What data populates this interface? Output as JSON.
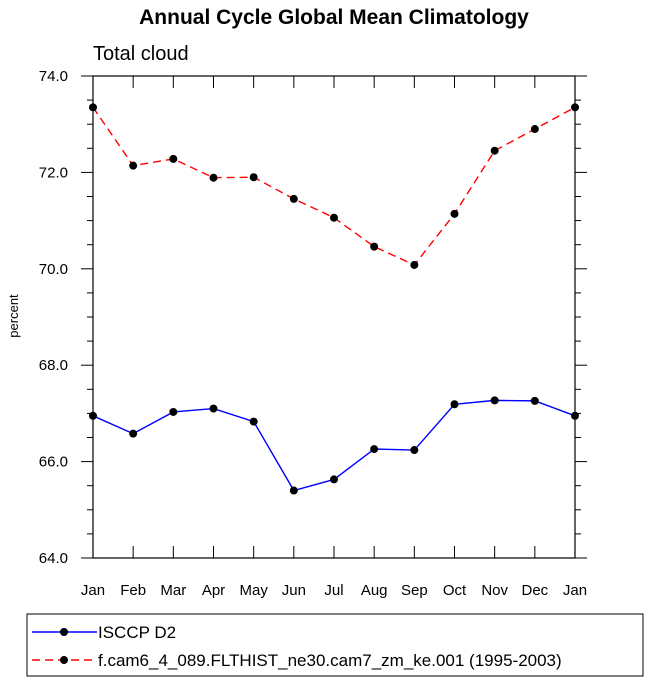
{
  "chart_data": {
    "type": "line",
    "title": "Annual Cycle Global Mean Climatology",
    "subtitle": "Total cloud",
    "xlabel": "",
    "ylabel": "percent",
    "categories": [
      "Jan",
      "Feb",
      "Mar",
      "Apr",
      "May",
      "Jun",
      "Jul",
      "Aug",
      "Sep",
      "Oct",
      "Nov",
      "Dec",
      "Jan"
    ],
    "ylim": [
      64.0,
      74.0
    ],
    "yticks": [
      "64.0",
      "66.0",
      "68.0",
      "70.0",
      "72.0",
      "74.0"
    ],
    "grid": false,
    "legend_position": "bottom",
    "series": [
      {
        "name": "ISCCP D2",
        "color": "#0000ff",
        "line_style": "solid",
        "marker": "filled-circle",
        "values": [
          66.95,
          66.58,
          67.03,
          67.1,
          66.83,
          65.4,
          65.63,
          66.26,
          66.24,
          67.19,
          67.27,
          67.26,
          66.95
        ]
      },
      {
        "name": "f.cam6_4_089.FLTHIST_ne30.cam7_zm_ke.001 (1995-2003)",
        "color": "#ff0000",
        "line_style": "dashed",
        "marker": "filled-circle",
        "values": [
          73.35,
          72.14,
          72.28,
          71.89,
          71.9,
          71.45,
          71.06,
          70.46,
          70.08,
          71.14,
          72.45,
          72.9,
          73.35
        ]
      }
    ]
  }
}
